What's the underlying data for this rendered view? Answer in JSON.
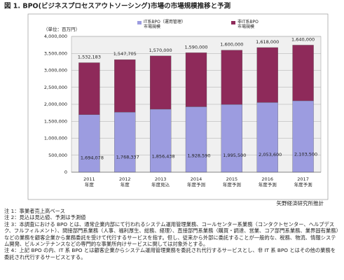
{
  "chart_data": {
    "type": "stacked_bar",
    "title": "図 1. BPO(ビジネスプロセスアウトソーシング)市場の市場規模推移と予測",
    "unit_label": "（単位：百万円）",
    "categories": [
      "2011\n年度",
      "2012\n年度",
      "2013\n年度見込",
      "2014\n年度予測",
      "2015\n年度予測",
      "2016\n年度予測",
      "2017\n年度予測"
    ],
    "series": [
      {
        "name": "IT系BPO（運用管理）\n市場規模",
        "color": "#9c9ce0",
        "values": [
          1694078,
          1768337,
          1856438,
          1928590,
          1995500,
          2053600,
          2103500
        ],
        "value_labels": [
          "1,694,078",
          "1,768,337",
          "1,856,438",
          "1,928,590",
          "1,995,500",
          "2,053,600",
          "2,103,500"
        ]
      },
      {
        "name": "非IT系BPO\n市場規模",
        "color": "#8e2a5a",
        "values": [
          1532183,
          1547705,
          1570000,
          1590000,
          1600000,
          1618000,
          1640000
        ],
        "value_labels": [
          "1,532,183",
          "1,547,705",
          "1,570,000",
          "1,590,000",
          "1,600,000",
          "1,618,000",
          "1,640,000"
        ]
      }
    ],
    "ylim": [
      0,
      4000000
    ],
    "yticks": [
      0,
      {
        "value": 500000,
        "label": "500,000"
      },
      {
        "value": 1000000,
        "label": "1,000,000"
      },
      {
        "value": 1500000,
        "label": "1,500,000"
      },
      {
        "value": 2000000,
        "label": "2,000,000"
      },
      {
        "value": 2500000,
        "label": "2,500,000"
      },
      {
        "value": 3000000,
        "label": "3,000,000"
      },
      {
        "value": 3500000,
        "label": "3,500,000"
      },
      {
        "value": 4000000,
        "label": "4,000,000"
      }
    ],
    "grid": true,
    "source": "矢野経済研究所推計",
    "notes": [
      "注 1：事業者売上高ベース",
      "注 2：見込は見込値、予測は予測値",
      "注 3：本調査における BPO とは、通常企業内部にて行われるシステム運用管理業務、コールセンター系業務（コンタクトセンター、ヘルプデスク、フルフィルメント）、間接部門系業務（人事、福利厚生、総務、経理）、直接部門系業務（購買・調達、営業、コア部門系業務、業界固有業務）などの業務を顧客企業から業務委託を受けて代行するサービスを指す。但し、従来から外部に委託することが一般的な、税務、物流、情報システム開発、ビルメンテナンスなどの専門的な事業所向けサービスに関しては対象外とする。",
      "注 4：上記 BPO の内、IT 系 BPO とは顧客企業からシステム運用管理業務を委託され代行するサービスとし、非 IT 系 BPO とはその他の業務を委託され代行するサービスとする。"
    ]
  }
}
